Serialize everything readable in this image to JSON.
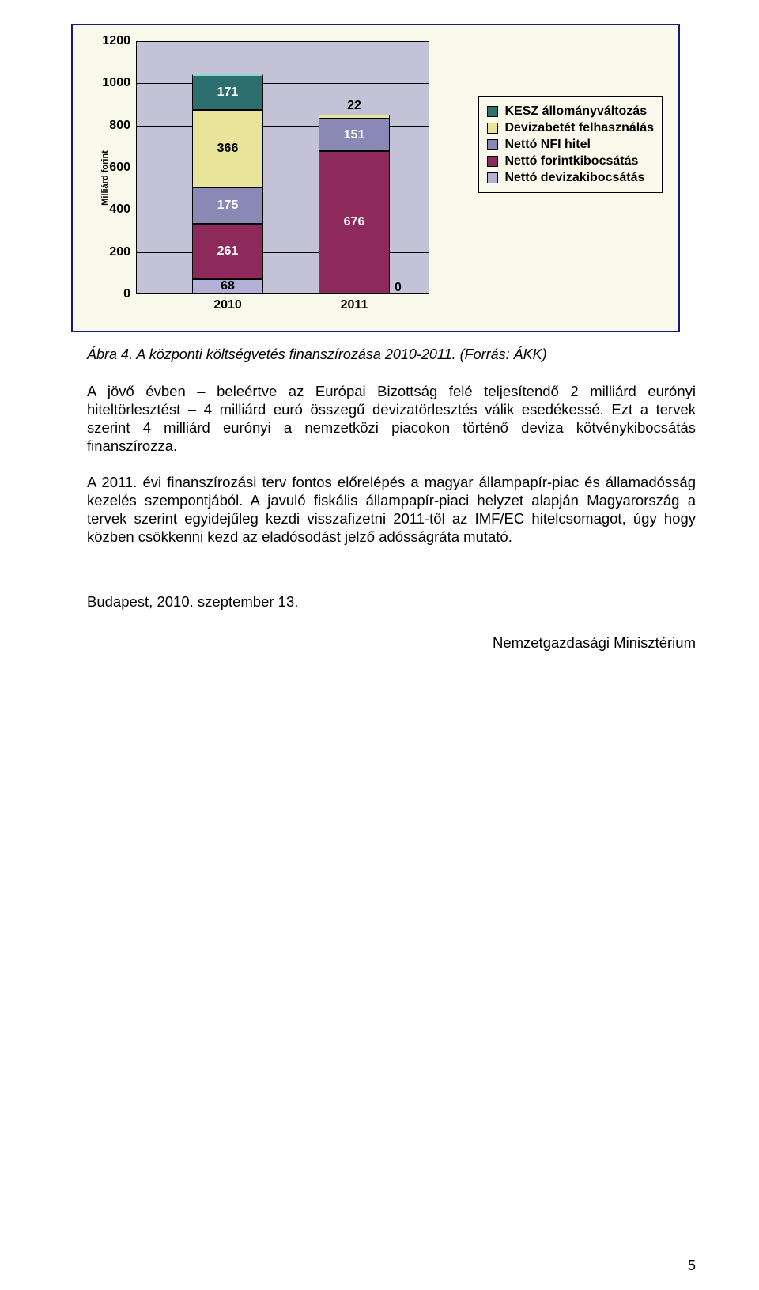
{
  "chart": {
    "type": "stacked-bar",
    "y_axis_title": "Milliárd forint",
    "ylim": [
      0,
      1200
    ],
    "ytick_step": 200,
    "yticks": [
      0,
      200,
      400,
      600,
      800,
      1000,
      1200
    ],
    "categories": [
      "2010",
      "2011"
    ],
    "series": [
      {
        "name": "Nettó devizakibocsátás",
        "color": "#b4b0d8",
        "values": [
          68,
          0
        ],
        "label_color": "dark"
      },
      {
        "name": "Nettó forintkibocsátás",
        "color": "#8e2a5b",
        "values": [
          261,
          676
        ],
        "label_color": "light"
      },
      {
        "name": "Nettó NFI hitel",
        "color": "#8a88b4",
        "values": [
          175,
          151
        ],
        "label_color": "light"
      },
      {
        "name": "Devizabetét felhasználás",
        "color": "#e8e49a",
        "values": [
          366,
          22
        ],
        "label_color": "dark"
      },
      {
        "name": "KESZ állományváltozás",
        "color": "#2d6e6e",
        "values": [
          171,
          0
        ],
        "label_color": "light",
        "top_border": "#8fd6d0"
      }
    ],
    "legend_order": [
      "KESZ állományváltozás",
      "Devizabetét felhasználás",
      "Nettó NFI hitel",
      "Nettó forintkibocsátás",
      "Nettó devizakibocsátás"
    ],
    "plot_bg": "#c4c2d6",
    "background_color": "#fafaec"
  },
  "caption": "Ábra 4. A központi költségvetés finanszírozása 2010-2011. (Forrás: ÁKK)",
  "paragraphs": {
    "p1": "A jövő évben – beleértve az Európai Bizottság felé teljesítendő 2 milliárd eurónyi hiteltörlesztést – 4 milliárd euró összegű devizatörlesztés válik esedékessé. Ezt a tervek szerint 4 milliárd eurónyi a nemzetközi piacokon történő deviza kötvénykibocsátás finanszírozza.",
    "p2": "A 2011. évi finanszírozási terv fontos előrelépés a magyar állampapír-piac és államadósság kezelés szempontjából. A javuló fiskális állampapír-piaci helyzet alapján Magyarország a tervek szerint egyidejűleg kezdi visszafizetni 2011-től az IMF/EC hitelcsomagot, úgy hogy közben csökkenni kezd az eladósodást jelző adósságráta mutató."
  },
  "signature": {
    "left": "Budapest, 2010. szeptember 13.",
    "right": "Nemzetgazdasági Minisztérium"
  },
  "page_number": "5"
}
